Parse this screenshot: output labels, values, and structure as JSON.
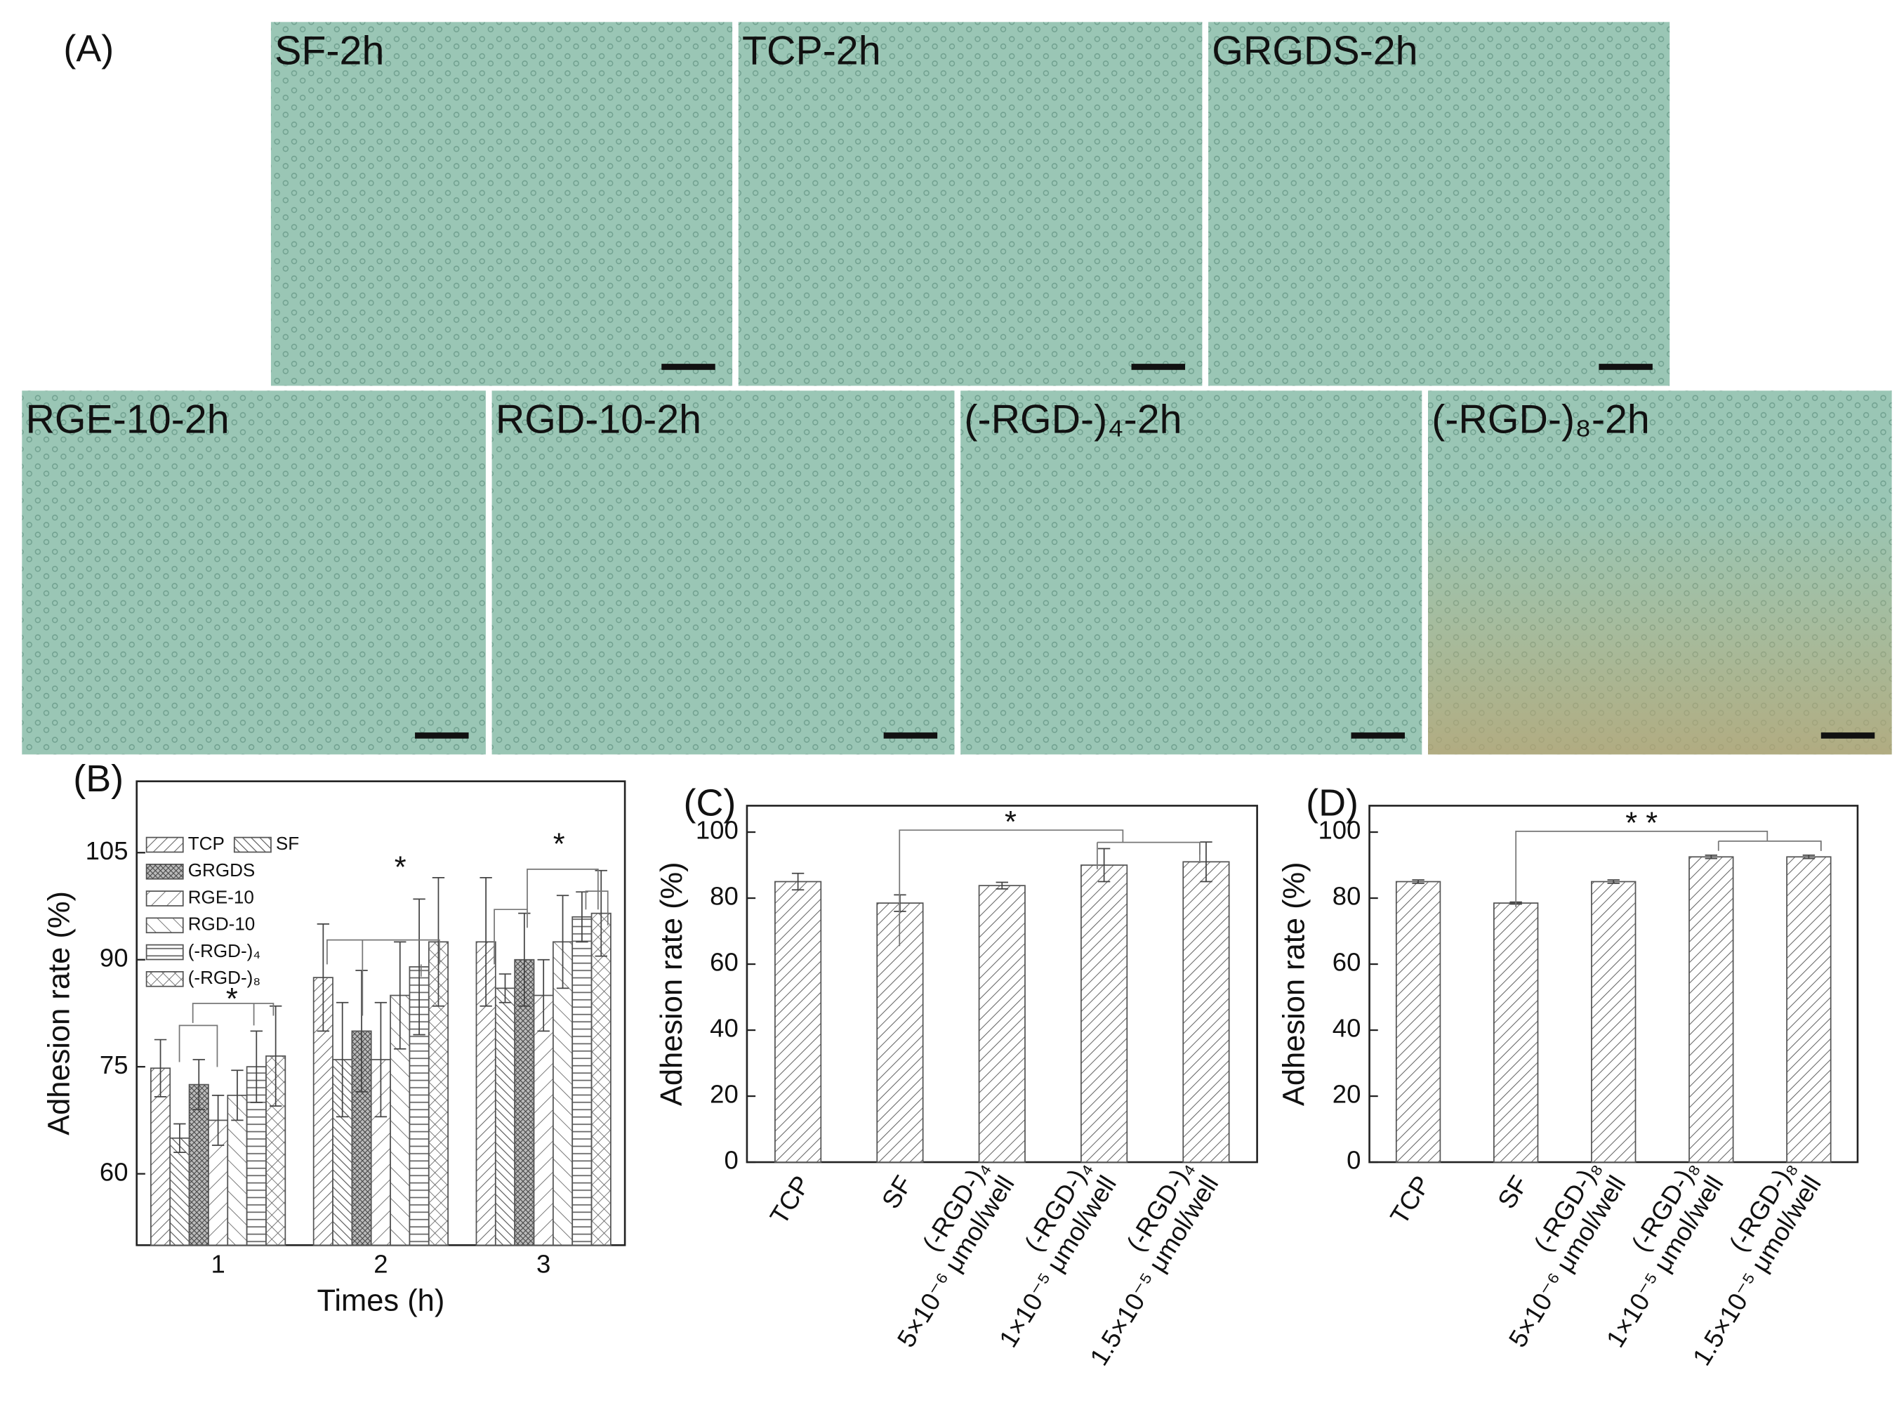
{
  "panel_a": {
    "label": "(A)",
    "images": [
      {
        "label": "SF-2h"
      },
      {
        "label": "TCP-2h"
      },
      {
        "label": "GRGDS-2h"
      },
      {
        "label": "RGE-10-2h"
      },
      {
        "label": "RGD-10-2h"
      },
      {
        "label": "(-RGD-)₄-2h"
      },
      {
        "label": "(-RGD-)₈-2h"
      }
    ]
  },
  "chart_data": [
    {
      "type": "bar",
      "panel": "(B)",
      "xlabel": "Times (h)",
      "ylabel": "Adhesion rate (%)",
      "categories": [
        "1",
        "2",
        "3"
      ],
      "ylim": [
        50,
        115
      ],
      "yticks": [
        60,
        75,
        90,
        105
      ],
      "legend": "upper left",
      "series": [
        {
          "name": "TCP",
          "color": "#555555",
          "pattern": "diagonal-up",
          "values": [
            74.8,
            87.5,
            92.5
          ],
          "errors": [
            4,
            7.5,
            9
          ]
        },
        {
          "name": "SF",
          "color": "#555555",
          "pattern": "diagonal-down",
          "values": [
            65,
            76,
            86
          ],
          "errors": [
            2,
            8,
            2
          ]
        },
        {
          "name": "GRGDS",
          "color": "#555555",
          "pattern": "grid-dense",
          "values": [
            72.5,
            80,
            90
          ],
          "errors": [
            3.5,
            8.5,
            6.5
          ]
        },
        {
          "name": "RGE-10",
          "color": "#555555",
          "pattern": "diagonal-up-sparse",
          "values": [
            67.5,
            76,
            85
          ],
          "errors": [
            3.5,
            8,
            5
          ]
        },
        {
          "name": "RGD-10",
          "color": "#555555",
          "pattern": "diagonal-down-sparse",
          "values": [
            71,
            85,
            92.5
          ],
          "errors": [
            3.5,
            7.5,
            6.5
          ]
        },
        {
          "name": "(-RGD-)₄",
          "color": "#555555",
          "pattern": "horizontal",
          "values": [
            75,
            89,
            96
          ],
          "errors": [
            5,
            9.5,
            3.5
          ]
        },
        {
          "name": "(-RGD-)₈",
          "color": "#555555",
          "pattern": "crosshatch",
          "values": [
            76.5,
            92.5,
            96.5
          ],
          "errors": [
            7,
            9,
            6
          ]
        }
      ],
      "annotations": [
        "*",
        "*",
        "*"
      ]
    },
    {
      "type": "bar",
      "panel": "(C)",
      "ylabel": "Adhesion rate (%)",
      "categories": [
        "TCP",
        "SF",
        [
          "(-RGD-)₄",
          "5×10⁻⁶ μmol/well"
        ],
        [
          "(-RGD-)₄",
          "1×10⁻⁵ μmol/well"
        ],
        [
          "(-RGD-)₄",
          "1.5×10⁻⁵ μmol/well"
        ]
      ],
      "ylim": [
        0,
        108
      ],
      "yticks": [
        0,
        20,
        40,
        60,
        80,
        100
      ],
      "series": [
        {
          "color": "#555555",
          "pattern": "diagonal-up",
          "values": [
            85,
            78.5,
            83.8,
            90,
            91
          ],
          "errors": [
            2.5,
            2.5,
            1,
            5,
            6
          ]
        }
      ],
      "annotations": [
        "*"
      ]
    },
    {
      "type": "bar",
      "panel": "(D)",
      "ylabel": "Adhesion rate (%)",
      "categories": [
        "TCP",
        "SF",
        [
          "(-RGD-)₈",
          "5×10⁻⁶ μmol/well"
        ],
        [
          "(-RGD-)₈",
          "1×10⁻⁵ μmol/well"
        ],
        [
          "(-RGD-)₈",
          "1.5×10⁻⁵ μmol/well"
        ]
      ],
      "ylim": [
        0,
        108
      ],
      "yticks": [
        0,
        20,
        40,
        60,
        80,
        100
      ],
      "series": [
        {
          "color": "#555555",
          "pattern": "diagonal-up",
          "values": [
            85,
            78.5,
            85,
            92.5,
            92.5
          ],
          "errors": [
            0.5,
            0.3,
            0.5,
            0.5,
            0.5
          ]
        }
      ],
      "annotations": [
        "* *"
      ]
    }
  ]
}
